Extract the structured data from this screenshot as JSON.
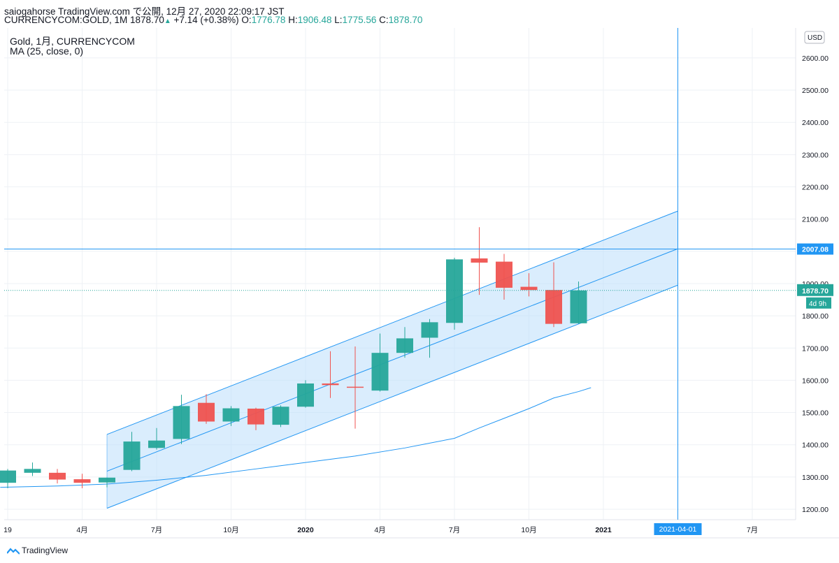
{
  "header": {
    "line1": "saiogahorse TradingView.com で公開, 12月 27, 2020 22:09:17 JST",
    "symbol": "CURRENCYCOM:GOLD, 1M",
    "last": "1878.70",
    "change": "+7.14 (+0.38%)",
    "o_label": "O:",
    "o": "1776.78",
    "h_label": "H:",
    "h": "1906.48",
    "l_label": "L:",
    "l": "1775.56",
    "c_label": "C:",
    "c": "1878.70"
  },
  "legend": {
    "line1": "Gold, 1月, CURRENCYCOM",
    "line2": "MA (25, close, 0)"
  },
  "footer": {
    "brand": "TradingView"
  },
  "colors": {
    "up": "#26a69a",
    "down": "#ef5350",
    "accent": "#2196f3",
    "channel_fill": "#bbdefb",
    "grid": "#eef1f5"
  },
  "chart_data": {
    "type": "candlestick",
    "currency": "USD",
    "ylim": [
      1180,
      2680
    ],
    "yticks": [
      1200,
      1300,
      1400,
      1500,
      1600,
      1700,
      1800,
      1900,
      2000,
      2100,
      2200,
      2300,
      2400,
      2500,
      2600
    ],
    "ytick_labels": [
      "1200.00",
      "1300.00",
      "1400.00",
      "1500.00",
      "1600.00",
      "1700.00",
      "1800.00",
      "1900.00",
      "2000.00",
      "2100.00",
      "2200.00",
      "2300.00",
      "2400.00",
      "2500.00",
      "2600.00"
    ],
    "xticks": [
      {
        "label": "19",
        "x": 0
      },
      {
        "label": "4月",
        "x": 3
      },
      {
        "label": "7月",
        "x": 6
      },
      {
        "label": "10月",
        "x": 9
      },
      {
        "label": "2020",
        "x": 12
      },
      {
        "label": "4月",
        "x": 15
      },
      {
        "label": "7月",
        "x": 18
      },
      {
        "label": "10月",
        "x": 21
      },
      {
        "label": "2021",
        "x": 24
      },
      {
        "label": "7月",
        "x": 30
      }
    ],
    "candles": [
      {
        "x": 0,
        "o": 1282,
        "h": 1325,
        "l": 1265,
        "c": 1320
      },
      {
        "x": 1,
        "o": 1313,
        "h": 1345,
        "l": 1303,
        "c": 1325
      },
      {
        "x": 2,
        "o": 1313,
        "h": 1325,
        "l": 1280,
        "c": 1292
      },
      {
        "x": 3,
        "o": 1293,
        "h": 1310,
        "l": 1265,
        "c": 1282
      },
      {
        "x": 4,
        "o": 1283,
        "h": 1298,
        "l": 1268,
        "c": 1298
      },
      {
        "x": 5,
        "o": 1322,
        "h": 1440,
        "l": 1318,
        "c": 1410
      },
      {
        "x": 6,
        "o": 1390,
        "h": 1452,
        "l": 1385,
        "c": 1413
      },
      {
        "x": 7,
        "o": 1418,
        "h": 1555,
        "l": 1402,
        "c": 1520
      },
      {
        "x": 8,
        "o": 1530,
        "h": 1557,
        "l": 1465,
        "c": 1472
      },
      {
        "x": 9,
        "o": 1472,
        "h": 1520,
        "l": 1458,
        "c": 1513
      },
      {
        "x": 10,
        "o": 1512,
        "h": 1515,
        "l": 1445,
        "c": 1463
      },
      {
        "x": 11,
        "o": 1462,
        "h": 1522,
        "l": 1455,
        "c": 1518
      },
      {
        "x": 12,
        "o": 1518,
        "h": 1600,
        "l": 1515,
        "c": 1590
      },
      {
        "x": 13,
        "o": 1590,
        "h": 1690,
        "l": 1545,
        "c": 1585
      },
      {
        "x": 14,
        "o": 1580,
        "h": 1705,
        "l": 1450,
        "c": 1577
      },
      {
        "x": 15,
        "o": 1568,
        "h": 1745,
        "l": 1565,
        "c": 1685
      },
      {
        "x": 16,
        "o": 1685,
        "h": 1765,
        "l": 1670,
        "c": 1730
      },
      {
        "x": 17,
        "o": 1732,
        "h": 1790,
        "l": 1670,
        "c": 1780
      },
      {
        "x": 18,
        "o": 1778,
        "h": 1980,
        "l": 1757,
        "c": 1975
      },
      {
        "x": 19,
        "o": 1978,
        "h": 2075,
        "l": 1865,
        "c": 1965
      },
      {
        "x": 20,
        "o": 1968,
        "h": 1992,
        "l": 1850,
        "c": 1887
      },
      {
        "x": 21,
        "o": 1890,
        "h": 1932,
        "l": 1860,
        "c": 1880
      },
      {
        "x": 22,
        "o": 1880,
        "h": 1966,
        "l": 1765,
        "c": 1775
      },
      {
        "x": 23,
        "o": 1776.78,
        "h": 1906.48,
        "l": 1775.56,
        "c": 1878.7
      }
    ],
    "ma": {
      "name": "MA (25, close, 0)",
      "points": [
        [
          -0.3,
          1268
        ],
        [
          2,
          1272
        ],
        [
          4,
          1278
        ],
        [
          6,
          1290
        ],
        [
          8,
          1305
        ],
        [
          10,
          1325
        ],
        [
          12,
          1345
        ],
        [
          14,
          1365
        ],
        [
          16,
          1390
        ],
        [
          18,
          1420
        ],
        [
          19,
          1452
        ],
        [
          20,
          1482
        ],
        [
          21,
          1512
        ],
        [
          22,
          1545
        ],
        [
          23,
          1565
        ],
        [
          23.5,
          1577
        ]
      ]
    },
    "channel": {
      "upper": [
        [
          4,
          1432
        ],
        [
          27,
          2125
        ]
      ],
      "mid": [
        [
          4,
          1318
        ],
        [
          27,
          2008
        ]
      ],
      "lower": [
        [
          4,
          1203
        ],
        [
          27,
          1895
        ]
      ]
    },
    "crosshair": {
      "x": 27,
      "y": 2007.08,
      "x_label": "2021-04-01",
      "y_label": "2007.08"
    },
    "last_price": {
      "value": 1878.7,
      "label": "1878.70",
      "countdown": "4d 9h"
    }
  }
}
